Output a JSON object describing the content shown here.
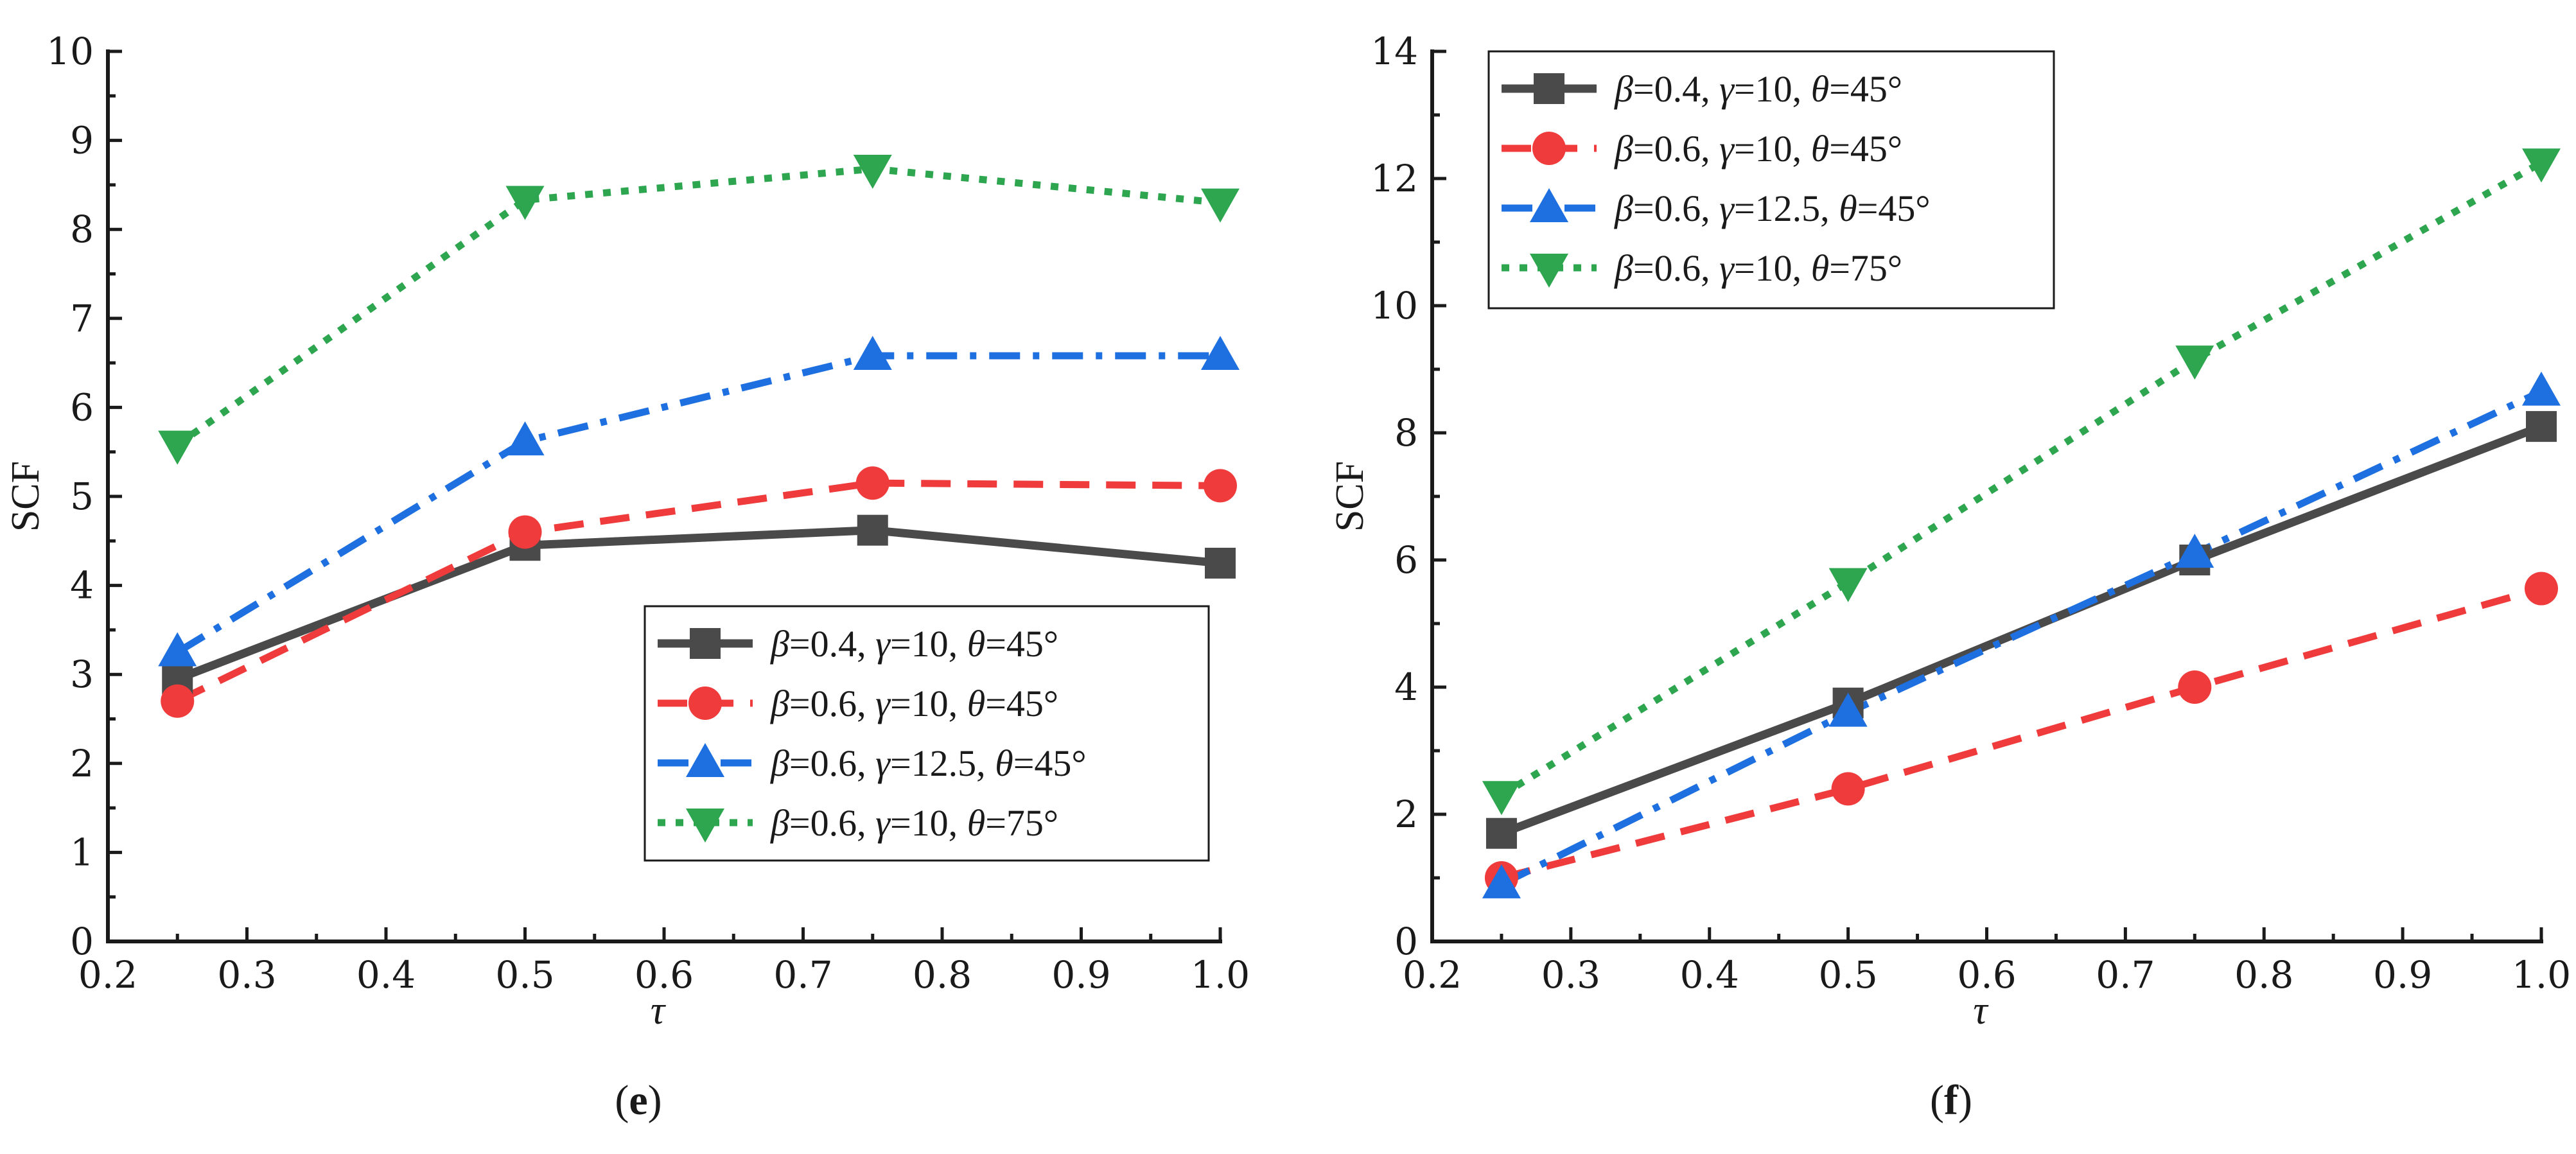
{
  "chart_data": [
    {
      "type": "line",
      "panel": "e",
      "xlabel": "τ",
      "ylabel": "SCF",
      "xlim": [
        0.2,
        1.0
      ],
      "ylim": [
        0,
        10
      ],
      "x_ticks": [
        0.2,
        0.3,
        0.4,
        0.5,
        0.6,
        0.7,
        0.8,
        0.9,
        1.0
      ],
      "x_tick_labels": [
        "0.2",
        "0.3",
        "0.4",
        "0.5",
        "0.6",
        "0.7",
        "0.8",
        "0.9",
        "1.0"
      ],
      "y_ticks": [
        0,
        1,
        2,
        3,
        4,
        5,
        6,
        7,
        8,
        9,
        10
      ],
      "y_tick_labels": [
        "0",
        "1",
        "2",
        "3",
        "4",
        "5",
        "6",
        "7",
        "8",
        "9",
        "10"
      ],
      "legend_position": "bottom-right",
      "x": [
        0.25,
        0.5,
        0.75,
        1.0
      ],
      "series": [
        {
          "name": "β=0.4, γ=10, θ=45°",
          "beta": "0.4",
          "gamma": "10",
          "theta": "45°",
          "values": [
            2.95,
            4.45,
            4.62,
            4.25
          ],
          "color": "#4a4a4a",
          "marker": "square",
          "dash": "solid"
        },
        {
          "name": "β=0.6, γ=10, θ=45°",
          "beta": "0.6",
          "gamma": "10",
          "theta": "45°",
          "values": [
            2.7,
            4.6,
            5.15,
            5.12
          ],
          "color": "#ef3b3b",
          "marker": "circle",
          "dash": "dashed"
        },
        {
          "name": "β=0.6, γ=12.5, θ=45°",
          "beta": "0.6",
          "gamma": "12.5",
          "theta": "45°",
          "values": [
            3.25,
            5.62,
            6.58,
            6.58
          ],
          "color": "#1e6fe0",
          "marker": "triangle-up",
          "dash": "dashdot"
        },
        {
          "name": "β=0.6, γ=10, θ=75°",
          "beta": "0.6",
          "gamma": "10",
          "theta": "75°",
          "values": [
            5.58,
            8.33,
            8.68,
            8.3
          ],
          "color": "#2ea650",
          "marker": "triangle-down",
          "dash": "dotted"
        }
      ]
    },
    {
      "type": "line",
      "panel": "f",
      "xlabel": "τ",
      "ylabel": "SCF",
      "xlim": [
        0.2,
        1.0
      ],
      "ylim": [
        0,
        14
      ],
      "x_ticks": [
        0.2,
        0.3,
        0.4,
        0.5,
        0.6,
        0.7,
        0.8,
        0.9,
        1.0
      ],
      "x_tick_labels": [
        "0.2",
        "0.3",
        "0.4",
        "0.5",
        "0.6",
        "0.7",
        "0.8",
        "0.9",
        "1.0"
      ],
      "y_ticks": [
        0,
        2,
        4,
        6,
        8,
        10,
        12,
        14
      ],
      "y_tick_labels": [
        "0",
        "2",
        "4",
        "6",
        "8",
        "10",
        "12",
        "14"
      ],
      "legend_position": "top-left",
      "x": [
        0.25,
        0.5,
        0.75,
        1.0
      ],
      "series": [
        {
          "name": "β=0.4, γ=10, θ=45°",
          "beta": "0.4",
          "gamma": "10",
          "theta": "45°",
          "values": [
            1.7,
            3.75,
            6.0,
            8.1
          ],
          "color": "#4a4a4a",
          "marker": "square",
          "dash": "solid"
        },
        {
          "name": "β=0.6, γ=10, θ=45°",
          "beta": "0.6",
          "gamma": "10",
          "theta": "45°",
          "values": [
            1.0,
            2.4,
            4.0,
            5.55
          ],
          "color": "#ef3b3b",
          "marker": "circle",
          "dash": "dashed"
        },
        {
          "name": "β=0.6, γ=12.5, θ=45°",
          "beta": "0.6",
          "gamma": "12.5",
          "theta": "45°",
          "values": [
            0.9,
            3.6,
            6.1,
            8.65
          ],
          "color": "#1e6fe0",
          "marker": "triangle-up",
          "dash": "dashdot"
        },
        {
          "name": "β=0.6, γ=10, θ=75°",
          "beta": "0.6",
          "gamma": "10",
          "theta": "75°",
          "values": [
            2.3,
            5.65,
            9.15,
            12.25
          ],
          "color": "#2ea650",
          "marker": "triangle-down",
          "dash": "dotted"
        }
      ]
    }
  ],
  "captions": {
    "e": "e",
    "f": "f"
  }
}
